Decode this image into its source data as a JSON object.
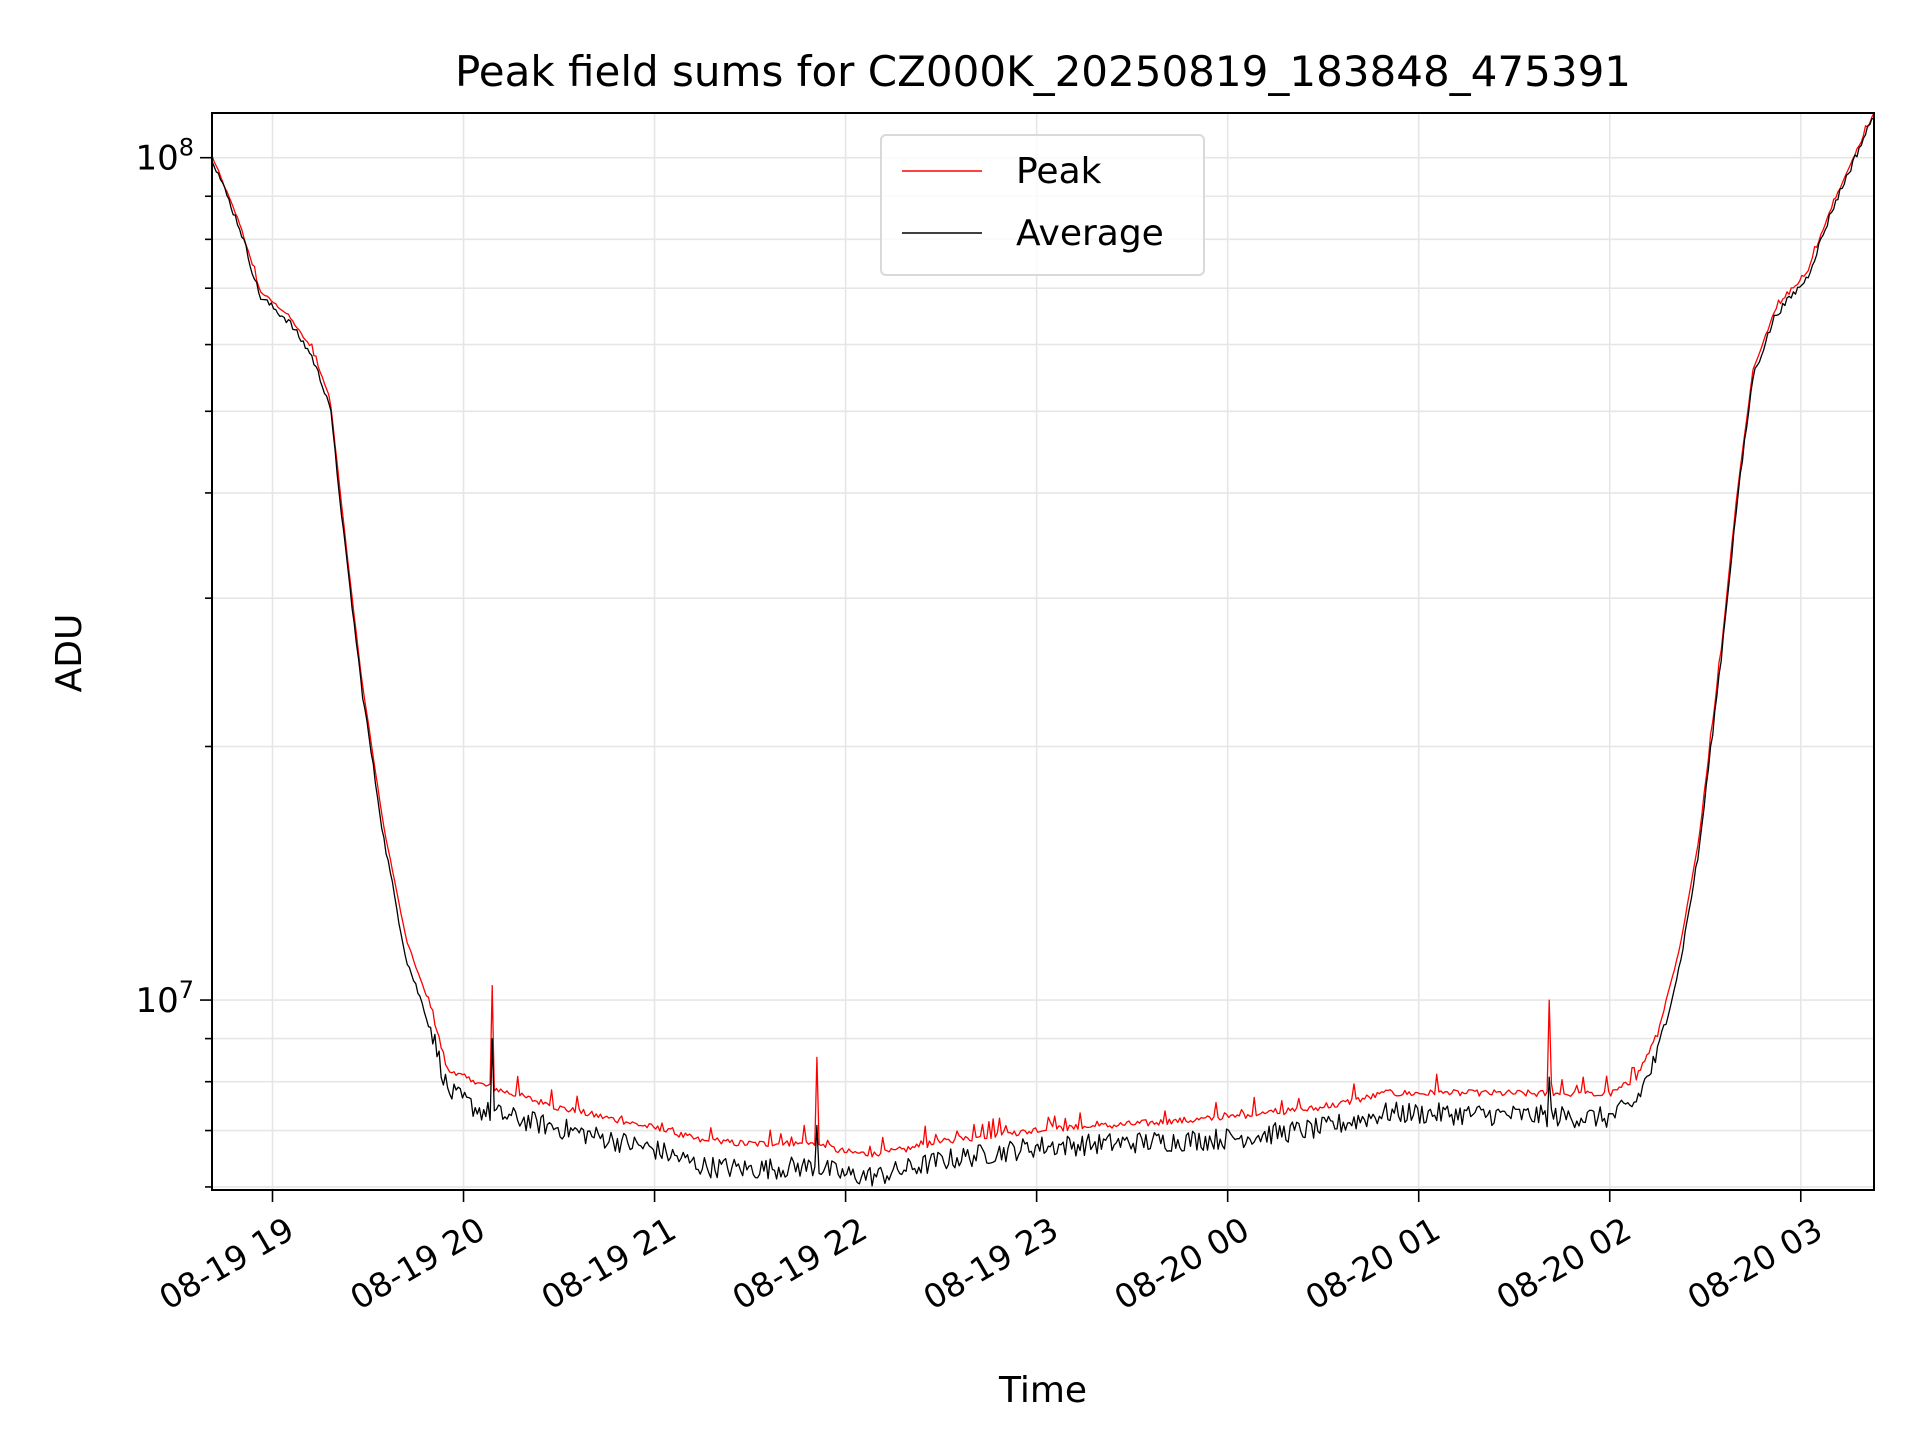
{
  "chart_data": {
    "type": "line",
    "title": "Peak field sums for CZ000K_20250819_183848_475391",
    "xlabel": "Time",
    "ylabel": "ADU",
    "yscale": "log",
    "grid": true,
    "legend_position": "top-center",
    "xlim": [
      "2025-08-19 18:41",
      "2025-08-20 03:23"
    ],
    "ylim": [
      5950000,
      113000000
    ],
    "x_ticks": [
      {
        "t": "2025-08-19 19:00",
        "label": "08-19 19"
      },
      {
        "t": "2025-08-19 20:00",
        "label": "08-19 20"
      },
      {
        "t": "2025-08-19 21:00",
        "label": "08-19 21"
      },
      {
        "t": "2025-08-19 22:00",
        "label": "08-19 22"
      },
      {
        "t": "2025-08-19 23:00",
        "label": "08-19 23"
      },
      {
        "t": "2025-08-20 00:00",
        "label": "08-20 00"
      },
      {
        "t": "2025-08-20 01:00",
        "label": "08-20 01"
      },
      {
        "t": "2025-08-20 02:00",
        "label": "08-20 02"
      },
      {
        "t": "2025-08-20 03:00",
        "label": "08-20 03"
      }
    ],
    "y_major_ticks": [
      {
        "value": 10000000,
        "base": "10",
        "exp": "7"
      },
      {
        "value": 100000000,
        "base": "10",
        "exp": "8"
      }
    ],
    "y_minor_ticks": [
      6000000,
      7000000,
      8000000,
      9000000,
      20000000,
      30000000,
      40000000,
      50000000,
      60000000,
      70000000,
      80000000,
      90000000
    ],
    "series": [
      {
        "name": "Peak",
        "color": "#ff0000",
        "points": [
          [
            "2025-08-19 18:41",
            100500000
          ],
          [
            "2025-08-19 18:50",
            83000000
          ],
          [
            "2025-08-19 18:56",
            69500000
          ],
          [
            "2025-08-19 19:05",
            65000000
          ],
          [
            "2025-08-19 19:12",
            59500000
          ],
          [
            "2025-08-19 19:18",
            52000000
          ],
          [
            "2025-08-19 19:23",
            35000000
          ],
          [
            "2025-08-19 19:28",
            24000000
          ],
          [
            "2025-08-19 19:35",
            16000000
          ],
          [
            "2025-08-19 19:42",
            11800000
          ],
          [
            "2025-08-19 19:50",
            9700000
          ],
          [
            "2025-08-19 19:55",
            8250000
          ],
          [
            "2025-08-19 20:05",
            7950000
          ],
          [
            "2025-08-19 20:30",
            7450000
          ],
          [
            "2025-08-19 21:00",
            7050000
          ],
          [
            "2025-08-19 21:15",
            6800000
          ],
          [
            "2025-08-19 21:30",
            6750000
          ],
          [
            "2025-08-19 21:50",
            6750000
          ],
          [
            "2025-08-19 22:00",
            6600000
          ],
          [
            "2025-08-19 22:10",
            6550000
          ],
          [
            "2025-08-19 22:30",
            6780000
          ],
          [
            "2025-08-19 23:00",
            7000000
          ],
          [
            "2025-08-20 00:00",
            7250000
          ],
          [
            "2025-08-20 00:30",
            7450000
          ],
          [
            "2025-08-20 00:50",
            7750000
          ],
          [
            "2025-08-20 01:30",
            7750000
          ],
          [
            "2025-08-20 02:00",
            7720000
          ],
          [
            "2025-08-20 02:08",
            8050000
          ],
          [
            "2025-08-20 02:15",
            9100000
          ],
          [
            "2025-08-20 02:22",
            11500000
          ],
          [
            "2025-08-20 02:28",
            15500000
          ],
          [
            "2025-08-20 02:35",
            26000000
          ],
          [
            "2025-08-20 02:40",
            40000000
          ],
          [
            "2025-08-20 02:45",
            56000000
          ],
          [
            "2025-08-20 02:52",
            66000000
          ],
          [
            "2025-08-20 03:02",
            73000000
          ],
          [
            "2025-08-20 03:10",
            88000000
          ],
          [
            "2025-08-20 03:23",
            113000000
          ]
        ],
        "spikes": [
          [
            "2025-08-19 20:09",
            10400000
          ],
          [
            "2025-08-19 21:51",
            8550000
          ],
          [
            "2025-08-20 01:41",
            10000000
          ]
        ]
      },
      {
        "name": "Average",
        "color": "#000000",
        "points": [
          [
            "2025-08-19 18:41",
            100000000
          ],
          [
            "2025-08-19 18:50",
            82000000
          ],
          [
            "2025-08-19 18:56",
            68500000
          ],
          [
            "2025-08-19 19:05",
            64000000
          ],
          [
            "2025-08-19 19:12",
            58500000
          ],
          [
            "2025-08-19 19:18",
            51000000
          ],
          [
            "2025-08-19 19:23",
            34000000
          ],
          [
            "2025-08-19 19:28",
            23500000
          ],
          [
            "2025-08-19 19:35",
            15500000
          ],
          [
            "2025-08-19 19:42",
            11200000
          ],
          [
            "2025-08-19 19:50",
            9200000
          ],
          [
            "2025-08-19 19:55",
            7800000
          ],
          [
            "2025-08-19 20:05",
            7400000
          ],
          [
            "2025-08-19 20:30",
            7050000
          ],
          [
            "2025-08-19 21:00",
            6650000
          ],
          [
            "2025-08-19 21:15",
            6350000
          ],
          [
            "2025-08-19 21:30",
            6300000
          ],
          [
            "2025-08-19 21:50",
            6350000
          ],
          [
            "2025-08-19 22:00",
            6200000
          ],
          [
            "2025-08-19 22:10",
            6180000
          ],
          [
            "2025-08-19 22:30",
            6450000
          ],
          [
            "2025-08-19 23:00",
            6700000
          ],
          [
            "2025-08-20 00:00",
            6850000
          ],
          [
            "2025-08-20 00:30",
            7050000
          ],
          [
            "2025-08-20 00:50",
            7350000
          ],
          [
            "2025-08-20 01:30",
            7300000
          ],
          [
            "2025-08-20 02:00",
            7250000
          ],
          [
            "2025-08-20 02:08",
            7550000
          ],
          [
            "2025-08-20 02:15",
            8600000
          ],
          [
            "2025-08-20 02:22",
            11000000
          ],
          [
            "2025-08-20 02:28",
            15000000
          ],
          [
            "2025-08-20 02:35",
            25500000
          ],
          [
            "2025-08-20 02:40",
            39000000
          ],
          [
            "2025-08-20 02:45",
            55000000
          ],
          [
            "2025-08-20 02:52",
            65000000
          ],
          [
            "2025-08-20 03:02",
            72000000
          ],
          [
            "2025-08-20 03:10",
            87000000
          ],
          [
            "2025-08-20 03:23",
            112500000
          ]
        ],
        "spikes": [
          [
            "2025-08-19 20:09",
            9000000
          ],
          [
            "2025-08-19 21:51",
            7100000
          ],
          [
            "2025-08-20 01:41",
            8100000
          ]
        ]
      }
    ]
  }
}
